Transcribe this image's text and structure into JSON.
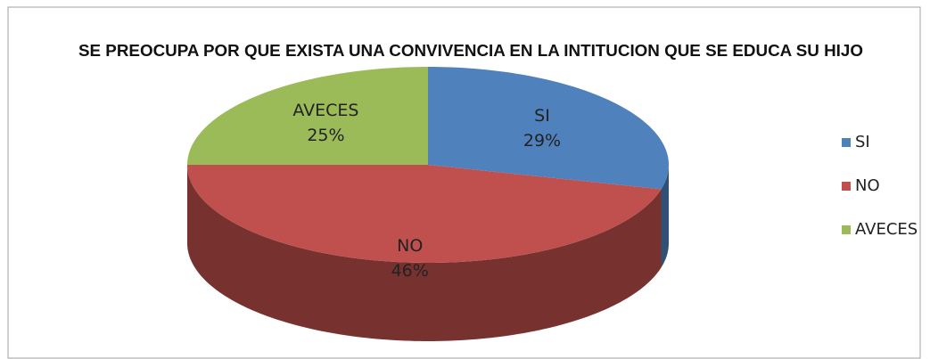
{
  "chart_data": {
    "type": "pie",
    "title": "SE PREOCUPA POR QUE EXISTA UNA CONVIVENCIA  EN LA INTITUCION  QUE SE EDUCA SU HIJO",
    "categories": [
      "SI",
      "NO",
      "AVECES"
    ],
    "values": [
      29,
      46,
      25
    ],
    "value_labels": [
      "29%",
      "46%",
      "25%"
    ],
    "colors": [
      "#4f81bd",
      "#c0504d",
      "#9bbb59"
    ],
    "legend": "right"
  }
}
